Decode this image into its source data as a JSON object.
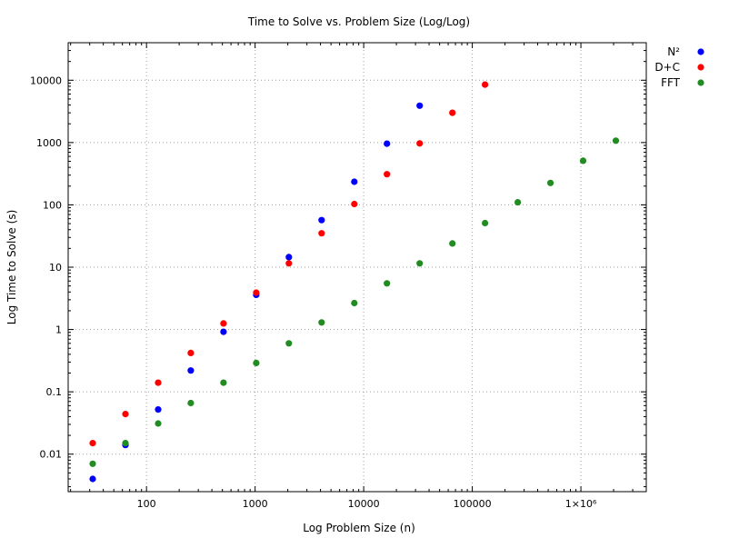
{
  "chart_data": {
    "type": "scatter",
    "title": "Time to Solve vs. Problem Size (Log/Log)",
    "xlabel": "Log Problem Size (n)",
    "ylabel": "Log Time to Solve (s)",
    "xscale": "log",
    "yscale": "log",
    "xlim": [
      19,
      4000000
    ],
    "ylim": [
      0.0025,
      40000
    ],
    "grid": true,
    "legend_position": "top-right outside",
    "x_ticks": [
      {
        "value": 100,
        "label": "100"
      },
      {
        "value": 1000,
        "label": "1000"
      },
      {
        "value": 10000,
        "label": "10000"
      },
      {
        "value": 100000,
        "label": "100000"
      },
      {
        "value": 1000000,
        "label": "1×10⁶"
      }
    ],
    "y_ticks": [
      {
        "value": 0.01,
        "label": "0.01"
      },
      {
        "value": 0.1,
        "label": "0.1"
      },
      {
        "value": 1,
        "label": "1"
      },
      {
        "value": 10,
        "label": "10"
      },
      {
        "value": 100,
        "label": "100"
      },
      {
        "value": 1000,
        "label": "1000"
      },
      {
        "value": 10000,
        "label": "10000"
      }
    ],
    "series": [
      {
        "name": "N²",
        "color": "#0000ff",
        "points": [
          [
            32,
            0.004
          ],
          [
            64,
            0.014
          ],
          [
            128,
            0.052
          ],
          [
            256,
            0.22
          ],
          [
            512,
            0.92
          ],
          [
            1024,
            3.6
          ],
          [
            2048,
            14.5
          ],
          [
            4096,
            57
          ],
          [
            8192,
            235
          ],
          [
            16384,
            960
          ],
          [
            32768,
            3900
          ]
        ]
      },
      {
        "name": "D+C",
        "color": "#ff0000",
        "points": [
          [
            32,
            0.015
          ],
          [
            64,
            0.044
          ],
          [
            128,
            0.14
          ],
          [
            256,
            0.42
          ],
          [
            512,
            1.25
          ],
          [
            1024,
            3.9
          ],
          [
            2048,
            11.5
          ],
          [
            4096,
            35
          ],
          [
            8192,
            103
          ],
          [
            16384,
            310
          ],
          [
            32768,
            970
          ],
          [
            65536,
            3000
          ],
          [
            131072,
            8500
          ]
        ]
      },
      {
        "name": "FFT",
        "color": "#228b22",
        "points": [
          [
            32,
            0.007
          ],
          [
            64,
            0.015
          ],
          [
            128,
            0.031
          ],
          [
            256,
            0.066
          ],
          [
            512,
            0.14
          ],
          [
            1024,
            0.29
          ],
          [
            2048,
            0.6
          ],
          [
            4096,
            1.3
          ],
          [
            8192,
            2.65
          ],
          [
            16384,
            5.5
          ],
          [
            32768,
            11.5
          ],
          [
            65536,
            24
          ],
          [
            131072,
            51
          ],
          [
            262144,
            110
          ],
          [
            524288,
            225
          ],
          [
            1048576,
            510
          ],
          [
            2097152,
            1070
          ]
        ]
      }
    ]
  }
}
